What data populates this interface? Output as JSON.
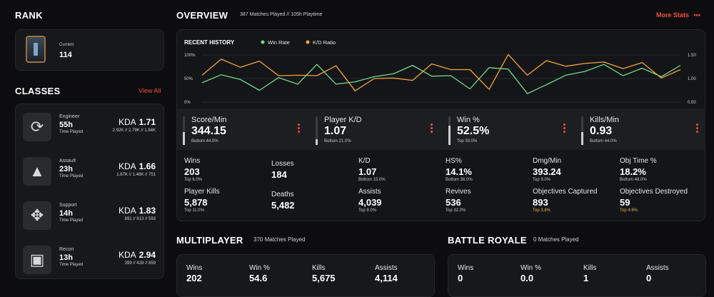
{
  "rank": {
    "title": "RANK",
    "current_label": "Current",
    "current_value": "114"
  },
  "classes": {
    "title": "CLASSES",
    "view_all": "View All",
    "items": [
      {
        "name": "Engineer",
        "time": "55h",
        "time_label": "Time Played",
        "kda_label": "KDA",
        "kda": "1.71",
        "breakdown": "2.92K // 2.79K // 1.84K"
      },
      {
        "name": "Assault",
        "time": "23h",
        "time_label": "Time Played",
        "kda_label": "KDA",
        "kda": "1.66",
        "breakdown": "1.67K // 1.46K // 751"
      },
      {
        "name": "Support",
        "time": "14h",
        "time_label": "Time Played",
        "kda_label": "KDA",
        "kda": "1.83",
        "breakdown": "891 // 813 // 593"
      },
      {
        "name": "Recon",
        "time": "13h",
        "time_label": "Time Played",
        "kda_label": "KDA",
        "kda": "2.94",
        "breakdown": "399 // 428 // 859"
      }
    ]
  },
  "overview": {
    "title": "OVERVIEW",
    "subtitle": "387 Matches Played // 105h Playtime",
    "more_stats": "More Stats",
    "more_icon": "ellipsis-icon"
  },
  "chart_data": {
    "type": "line",
    "title": "RECENT HISTORY",
    "left_axis": {
      "ticks": [
        "100%",
        "50%",
        "0%"
      ],
      "ylim": [
        0,
        100
      ]
    },
    "right_axis": {
      "ticks": [
        "1.50",
        "1.00",
        "0.50"
      ],
      "ylim": [
        0.5,
        1.5
      ]
    },
    "series": [
      {
        "name": "Win Rate",
        "color": "#6fdc8c",
        "axis": "left",
        "values": [
          41,
          58,
          48,
          25,
          52,
          38,
          80,
          38,
          43,
          54,
          60,
          78,
          55,
          56,
          28,
          73,
          70,
          18,
          37,
          57,
          65,
          80,
          56,
          72,
          54,
          78
        ]
      },
      {
        "name": "K/D Ratio",
        "color": "#f2a33a",
        "axis": "right",
        "values": [
          1.07,
          1.41,
          1.24,
          1.37,
          1.06,
          1.07,
          1.06,
          1.27,
          0.74,
          1.0,
          1.01,
          0.96,
          1.31,
          1.19,
          1.19,
          0.77,
          1.51,
          1.07,
          1.38,
          1.26,
          1.32,
          1.35,
          1.21,
          1.34,
          1.01,
          1.19
        ]
      }
    ]
  },
  "key_stats": [
    {
      "title": "Score/Min",
      "value": "344.15",
      "sub": "Bottom 44.0%",
      "percentile": 0.44
    },
    {
      "title": "Player K/D",
      "value": "1.07",
      "sub": "Bottom 21.0%",
      "percentile": 0.21
    },
    {
      "title": "Win %",
      "value": "52.5%",
      "sub": "Top 33.0%",
      "percentile": 0.67
    },
    {
      "title": "Kills/Min",
      "value": "0.93",
      "sub": "Bottom 44.0%",
      "percentile": 0.44
    }
  ],
  "stats": [
    {
      "name": "Wins",
      "value": "203",
      "sub": "Top 6.0%"
    },
    {
      "name": "Losses",
      "value": "184",
      "sub": ""
    },
    {
      "name": "K/D",
      "value": "1.07",
      "sub": "Bottom 15.0%"
    },
    {
      "name": "HS%",
      "value": "14.1%",
      "sub": "Bottom 36.0%"
    },
    {
      "name": "Dmg/Min",
      "value": "393.24",
      "sub": "Top 9.0%"
    },
    {
      "name": "Obj Time %",
      "value": "18.2%",
      "sub": "Bottom 48.0%"
    },
    {
      "name": "Player Kills",
      "value": "5,878",
      "sub": "Top 11.0%"
    },
    {
      "name": "Deaths",
      "value": "5,482",
      "sub": ""
    },
    {
      "name": "Assists",
      "value": "4,039",
      "sub": "Top 8.0%"
    },
    {
      "name": "Revives",
      "value": "536",
      "sub": "Top 32.0%"
    },
    {
      "name": "Objectives Captured",
      "value": "893",
      "sub": "Top 3.8%"
    },
    {
      "name": "Objectives Destroyed",
      "value": "59",
      "sub": "Top 4.6%"
    }
  ],
  "multiplayer": {
    "title": "MULTIPLAYER",
    "subtitle": "370 Matches Played",
    "stats": [
      {
        "name": "Wins",
        "value": "202"
      },
      {
        "name": "Win %",
        "value": "54.6"
      },
      {
        "name": "Kills",
        "value": "5,675"
      },
      {
        "name": "Assists",
        "value": "4,114"
      }
    ]
  },
  "battle_royale": {
    "title": "BATTLE ROYALE",
    "subtitle": "0 Matches Played",
    "stats": [
      {
        "name": "Wins",
        "value": "0"
      },
      {
        "name": "Win %",
        "value": "0.0"
      },
      {
        "name": "Kills",
        "value": "1"
      },
      {
        "name": "Assists",
        "value": "0"
      }
    ]
  },
  "colors": {
    "accent": "#f0523a",
    "gold": "#e9b44c",
    "win_rate": "#6fdc8c",
    "kd": "#f2a33a"
  }
}
